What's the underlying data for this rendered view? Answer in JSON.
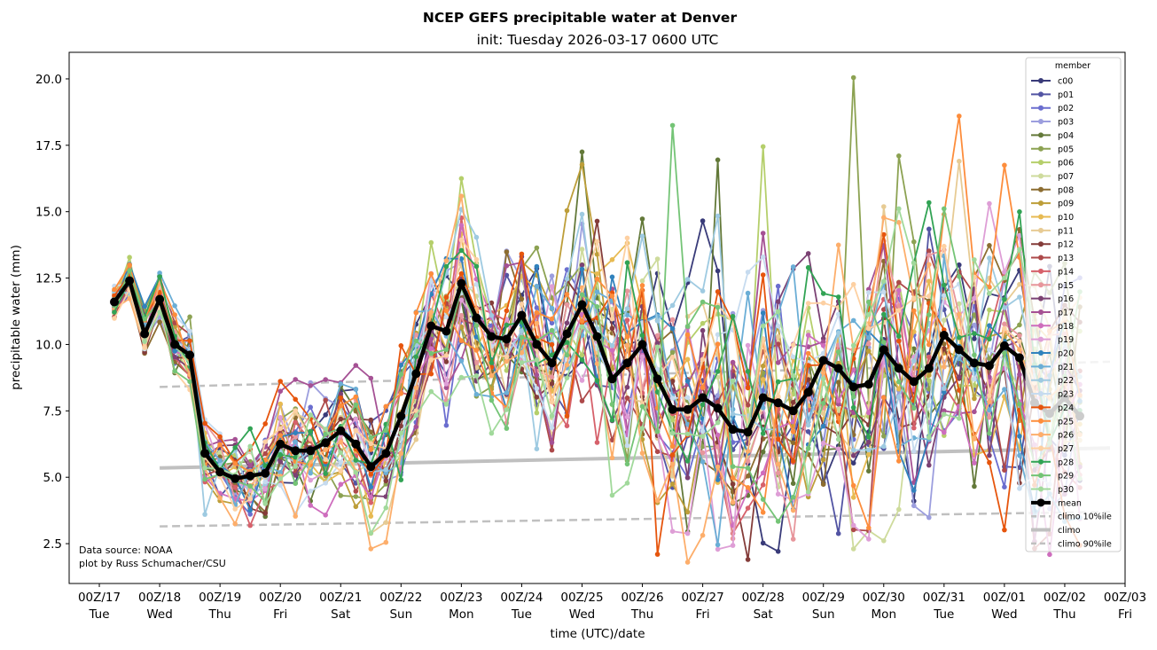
{
  "chart_data": {
    "type": "line",
    "title": "NCEP GEFS precipitable water at Denver",
    "subtitle": "init: Tuesday 2026-03-17 0600 UTC",
    "xlabel": "time (UTC)/date",
    "ylabel": "precipitable water (mm)",
    "ylim": [
      1.0,
      21.0
    ],
    "yticks": [
      2.5,
      5.0,
      7.5,
      10.0,
      12.5,
      15.0,
      17.5,
      20.0
    ],
    "ytick_labels": [
      "2.5",
      "5.0",
      "7.5",
      "10.0",
      "12.5",
      "15.0",
      "17.5",
      "20.0"
    ],
    "x_units": "hours since 00Z/17",
    "xlim": [
      -12,
      408
    ],
    "xticks": [
      {
        "hour": 0,
        "label": "00Z/17",
        "day": "Tue"
      },
      {
        "hour": 24,
        "label": "00Z/18",
        "day": "Wed"
      },
      {
        "hour": 48,
        "label": "00Z/19",
        "day": "Thu"
      },
      {
        "hour": 72,
        "label": "00Z/20",
        "day": "Fri"
      },
      {
        "hour": 96,
        "label": "00Z/21",
        "day": "Sat"
      },
      {
        "hour": 120,
        "label": "00Z/22",
        "day": "Sun"
      },
      {
        "hour": 144,
        "label": "00Z/23",
        "day": "Mon"
      },
      {
        "hour": 168,
        "label": "00Z/24",
        "day": "Tue"
      },
      {
        "hour": 192,
        "label": "00Z/25",
        "day": "Wed"
      },
      {
        "hour": 216,
        "label": "00Z/26",
        "day": "Thu"
      },
      {
        "hour": 240,
        "label": "00Z/27",
        "day": "Fri"
      },
      {
        "hour": 264,
        "label": "00Z/28",
        "day": "Sat"
      },
      {
        "hour": 288,
        "label": "00Z/29",
        "day": "Sun"
      },
      {
        "hour": 312,
        "label": "00Z/30",
        "day": "Mon"
      },
      {
        "hour": 336,
        "label": "00Z/31",
        "day": "Tue"
      },
      {
        "hour": 360,
        "label": "00Z/01",
        "day": "Wed"
      },
      {
        "hour": 384,
        "label": "00Z/02",
        "day": "Thu"
      },
      {
        "hour": 408,
        "label": "00Z/03",
        "day": "Fri"
      }
    ],
    "time_start_hour": 6,
    "time_step_hours": 6,
    "grid": false,
    "legend": {
      "title": "member",
      "placement": "upper-right"
    },
    "mean": {
      "name": "mean",
      "color": "#000000",
      "values": [
        11.6,
        12.4,
        10.4,
        11.7,
        10.0,
        9.6,
        5.9,
        5.2,
        4.95,
        5.05,
        5.15,
        6.25,
        6.0,
        6.0,
        6.3,
        6.75,
        6.25,
        5.4,
        5.9,
        7.3,
        8.9,
        10.7,
        10.5,
        12.3,
        11.0,
        10.3,
        10.2,
        11.1,
        10.0,
        9.3,
        10.4,
        11.5,
        10.3,
        8.7,
        9.3,
        10.0,
        8.7,
        7.55,
        7.55,
        8.0,
        7.6,
        6.8,
        6.7,
        8.0,
        7.8,
        7.5,
        8.2,
        9.4,
        9.1,
        8.4,
        8.5,
        9.8,
        9.1,
        8.6,
        9.1,
        10.35,
        9.8,
        9.3,
        9.2,
        9.95,
        9.5,
        7.8,
        7.4,
        8.0,
        7.3
      ]
    },
    "climatology": [
      {
        "name": "climo 10%ile",
        "style": "dashed",
        "color": "#c0c0c0",
        "start_hour": 24,
        "end_hour": 402,
        "values": [
          3.15,
          3.7
        ]
      },
      {
        "name": "climo",
        "style": "solid",
        "color": "#c0c0c0",
        "start_hour": 24,
        "end_hour": 402,
        "values": [
          5.35,
          6.1
        ]
      },
      {
        "name": "climo 90%ile",
        "style": "dashed",
        "color": "#c0c0c0",
        "start_hour": 24,
        "end_hour": 402,
        "values": [
          8.4,
          9.35
        ]
      }
    ],
    "members": [
      {
        "name": "c00",
        "color": "#393b79"
      },
      {
        "name": "p01",
        "color": "#5254a3"
      },
      {
        "name": "p02",
        "color": "#6b6ecf"
      },
      {
        "name": "p03",
        "color": "#9c9ede"
      },
      {
        "name": "p04",
        "color": "#637939"
      },
      {
        "name": "p05",
        "color": "#8ca252"
      },
      {
        "name": "p06",
        "color": "#b5cf6b"
      },
      {
        "name": "p07",
        "color": "#cedb9c"
      },
      {
        "name": "p08",
        "color": "#8c6d31"
      },
      {
        "name": "p09",
        "color": "#bd9e39"
      },
      {
        "name": "p10",
        "color": "#e7ba52"
      },
      {
        "name": "p11",
        "color": "#e7cb94"
      },
      {
        "name": "p12",
        "color": "#843c39"
      },
      {
        "name": "p13",
        "color": "#ad494a"
      },
      {
        "name": "p14",
        "color": "#d6616b"
      },
      {
        "name": "p15",
        "color": "#e7969c"
      },
      {
        "name": "p16",
        "color": "#7b4173"
      },
      {
        "name": "p17",
        "color": "#a55194"
      },
      {
        "name": "p18",
        "color": "#ce6dbd"
      },
      {
        "name": "p19",
        "color": "#de9ed6"
      },
      {
        "name": "p20",
        "color": "#3182bd"
      },
      {
        "name": "p21",
        "color": "#6baed6"
      },
      {
        "name": "p22",
        "color": "#9ecae1"
      },
      {
        "name": "p23",
        "color": "#c6dbef"
      },
      {
        "name": "p24",
        "color": "#e6550d"
      },
      {
        "name": "p25",
        "color": "#fd8d3c"
      },
      {
        "name": "p26",
        "color": "#fdae6b"
      },
      {
        "name": "p27",
        "color": "#fdd0a2"
      },
      {
        "name": "p28",
        "color": "#31a354"
      },
      {
        "name": "p29",
        "color": "#74c476"
      },
      {
        "name": "p30",
        "color": "#a1d99b"
      }
    ],
    "member_notable_points": [
      {
        "name": "p05",
        "hour": 300,
        "value": 20.05
      },
      {
        "name": "p25",
        "hour": 342,
        "value": 18.6
      },
      {
        "name": "p29",
        "hour": 228,
        "value": 18.25
      },
      {
        "name": "p06",
        "hour": 264,
        "value": 17.45
      },
      {
        "name": "p04",
        "hour": 192,
        "value": 17.25
      },
      {
        "name": "p05",
        "hour": 318,
        "value": 17.1
      },
      {
        "name": "p04",
        "hour": 246,
        "value": 16.95
      },
      {
        "name": "p11",
        "hour": 342,
        "value": 16.9
      },
      {
        "name": "p25",
        "hour": 360,
        "value": 16.75
      },
      {
        "name": "p06",
        "hour": 144,
        "value": 16.25
      },
      {
        "name": "p24",
        "hour": 222,
        "value": 2.1
      },
      {
        "name": "p12",
        "hour": 258,
        "value": 1.9
      },
      {
        "name": "p22",
        "hour": 42,
        "value": 3.6
      }
    ],
    "annotations": [
      "Data source: NOAA",
      "plot by Russ Schumacher/CSU"
    ],
    "legend_extra": [
      "mean",
      "climo 10%ile",
      "climo",
      "climo 90%ile"
    ]
  }
}
